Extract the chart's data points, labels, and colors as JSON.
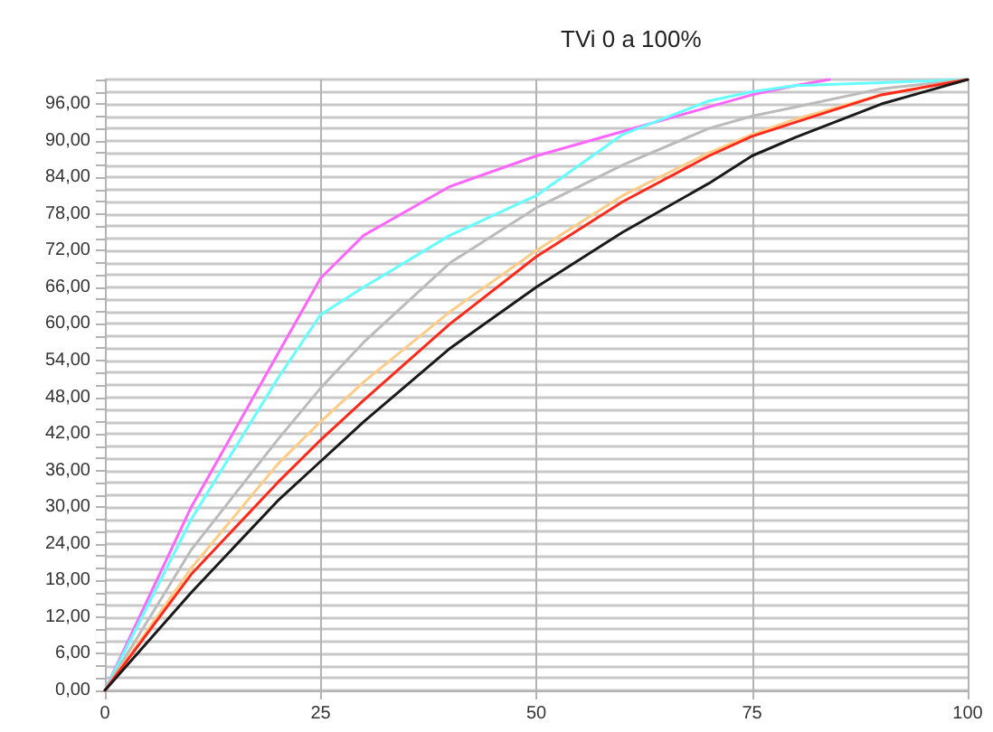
{
  "chart_data": {
    "type": "line",
    "title": "TVi 0 a 100%",
    "x": [
      0,
      10,
      20,
      25,
      30,
      40,
      50,
      60,
      70,
      75,
      80,
      90,
      100
    ],
    "series": [
      {
        "color": "#ff66ff",
        "x": [
          0,
          10,
          20,
          25,
          30,
          40,
          50,
          60,
          70,
          75,
          80,
          84
        ],
        "values": [
          0,
          30,
          55,
          67.5,
          74.5,
          82.5,
          87.5,
          91.5,
          95.5,
          97.5,
          99,
          100
        ]
      },
      {
        "color": "#66ffff",
        "values": [
          0,
          28,
          51,
          61.5,
          66,
          74.5,
          81,
          91,
          96.5,
          98,
          99,
          99.5,
          100
        ]
      },
      {
        "color": "#bbbbbb",
        "values": [
          0,
          23,
          41,
          49.5,
          57,
          70,
          79,
          86,
          92,
          94,
          95.5,
          98.5,
          100
        ]
      },
      {
        "color": "#ffcc88",
        "values": [
          0,
          20,
          37,
          44,
          50.5,
          62,
          72,
          81,
          88,
          91,
          93.5,
          97.5,
          100
        ]
      },
      {
        "color": "#ff2a1a",
        "values": [
          0,
          19,
          34,
          41,
          47.5,
          60,
          71,
          80,
          87.5,
          90.7,
          93,
          97.5,
          100
        ]
      },
      {
        "color": "#1a1a1a",
        "values": [
          0,
          16,
          31,
          37.5,
          44,
          56,
          66,
          75,
          83,
          87.5,
          90.5,
          96,
          100
        ]
      }
    ],
    "xlim": [
      0,
      100
    ],
    "xticks": [
      0,
      25,
      50,
      75,
      100
    ],
    "ylim": [
      0,
      100
    ],
    "yticks": [
      {
        "value": 0,
        "label": "0,00"
      },
      {
        "value": 2,
        "label": null
      },
      {
        "value": 4,
        "label": null
      },
      {
        "value": 6,
        "label": "6,00"
      },
      {
        "value": 8,
        "label": null
      },
      {
        "value": 10,
        "label": null
      },
      {
        "value": 12,
        "label": "12,00"
      },
      {
        "value": 14,
        "label": null
      },
      {
        "value": 16,
        "label": null
      },
      {
        "value": 18,
        "label": "18,00"
      },
      {
        "value": 20,
        "label": null
      },
      {
        "value": 22,
        "label": null
      },
      {
        "value": 24,
        "label": "24,00"
      },
      {
        "value": 26,
        "label": null
      },
      {
        "value": 28,
        "label": null
      },
      {
        "value": 30,
        "label": "30,00"
      },
      {
        "value": 32,
        "label": null
      },
      {
        "value": 34,
        "label": null
      },
      {
        "value": 36,
        "label": "36,00"
      },
      {
        "value": 38,
        "label": null
      },
      {
        "value": 40,
        "label": null
      },
      {
        "value": 42,
        "label": "42,00"
      },
      {
        "value": 44,
        "label": null
      },
      {
        "value": 46,
        "label": null
      },
      {
        "value": 48,
        "label": "48,00"
      },
      {
        "value": 50,
        "label": null
      },
      {
        "value": 52,
        "label": null
      },
      {
        "value": 54,
        "label": "54,00"
      },
      {
        "value": 56,
        "label": null
      },
      {
        "value": 58,
        "label": null
      },
      {
        "value": 60,
        "label": "60,00"
      },
      {
        "value": 62,
        "label": null
      },
      {
        "value": 64,
        "label": null
      },
      {
        "value": 66,
        "label": "66,00"
      },
      {
        "value": 68,
        "label": null
      },
      {
        "value": 70,
        "label": null
      },
      {
        "value": 72,
        "label": "72,00"
      },
      {
        "value": 74,
        "label": null
      },
      {
        "value": 76,
        "label": null
      },
      {
        "value": 78,
        "label": "78,00"
      },
      {
        "value": 80,
        "label": null
      },
      {
        "value": 82,
        "label": null
      },
      {
        "value": 84,
        "label": "84,00"
      },
      {
        "value": 86,
        "label": null
      },
      {
        "value": 88,
        "label": null
      },
      {
        "value": 90,
        "label": "90,00"
      },
      {
        "value": 92,
        "label": null
      },
      {
        "value": 94,
        "label": null
      },
      {
        "value": 96,
        "label": "96,00"
      },
      {
        "value": 98,
        "label": null
      },
      {
        "value": 100,
        "label": null
      }
    ],
    "grid": true,
    "marker": "none",
    "line_style": "solid"
  }
}
